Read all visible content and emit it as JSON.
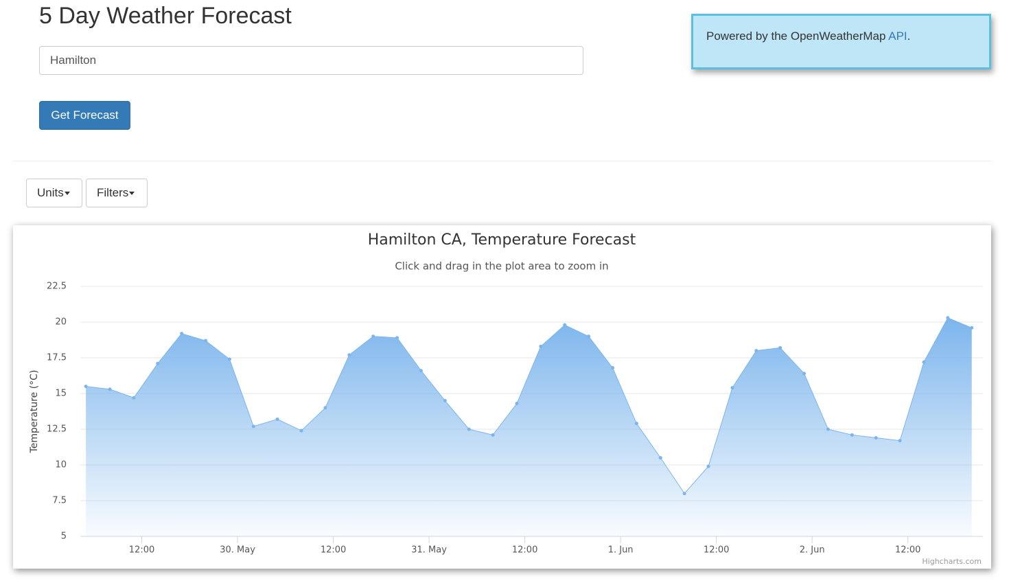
{
  "header": {
    "title": "5 Day Weather Forecast"
  },
  "search": {
    "value": "Hamilton",
    "button": "Get Forecast"
  },
  "info": {
    "text": "Powered by the OpenWeatherMap",
    "link": "API",
    "suffix": "."
  },
  "toolbar": {
    "units": "Units",
    "filters": "Filters"
  },
  "chart_data": {
    "type": "area",
    "title": "Hamilton CA, Temperature Forecast",
    "subtitle": "Click and drag in the plot area to zoom in",
    "y_label": "Temperature (°C)",
    "credits": "Highcharts.com",
    "color": "#7cb5ec",
    "grid": true,
    "x": [
      5,
      8,
      11,
      14,
      17,
      20,
      23,
      26,
      29,
      32,
      35,
      38,
      41,
      44,
      47,
      50,
      53,
      56,
      59,
      62,
      65,
      68,
      71,
      74,
      77,
      80,
      83,
      86,
      89,
      92,
      95,
      98,
      101,
      104,
      107,
      110,
      113,
      116
    ],
    "values": [
      15.5,
      15.3,
      14.7,
      17.1,
      19.2,
      18.7,
      17.4,
      12.7,
      13.2,
      12.4,
      14.0,
      17.7,
      19.0,
      18.9,
      16.6,
      14.5,
      12.5,
      12.1,
      14.3,
      18.3,
      19.8,
      19.0,
      16.8,
      12.9,
      10.5,
      8.0,
      9.9,
      15.4,
      18.0,
      18.2,
      16.4,
      12.5,
      12.1,
      11.9,
      11.7,
      17.2,
      20.3,
      19.6
    ],
    "xlim": [
      4.3,
      117.4
    ],
    "xticks": [
      {
        "value": 12,
        "label": "12:00"
      },
      {
        "value": 24,
        "label": "30. May"
      },
      {
        "value": 36,
        "label": "12:00"
      },
      {
        "value": 48,
        "label": "31. May"
      },
      {
        "value": 60,
        "label": "12:00"
      },
      {
        "value": 72,
        "label": "1. Jun"
      },
      {
        "value": 84,
        "label": "12:00"
      },
      {
        "value": 96,
        "label": "2. Jun"
      },
      {
        "value": 108,
        "label": "12:00"
      }
    ],
    "ylim": [
      5,
      22.5
    ],
    "yticks": [
      5,
      7.5,
      10,
      12.5,
      15,
      17.5,
      20,
      22.5
    ]
  }
}
